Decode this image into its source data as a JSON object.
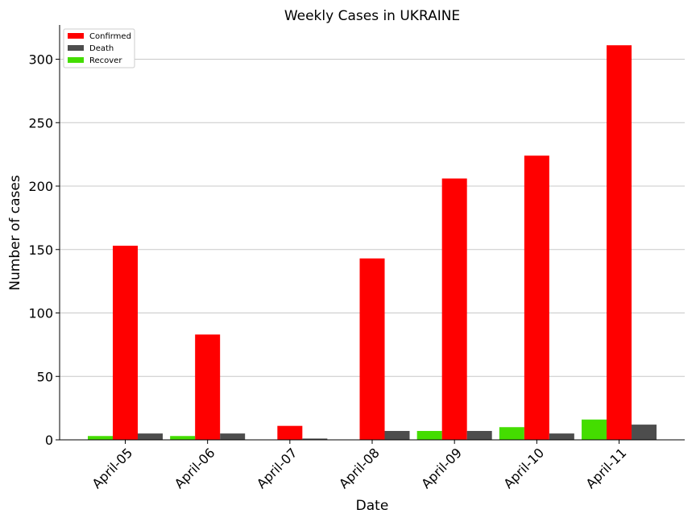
{
  "chart_data": {
    "type": "bar",
    "title": "Weekly Cases in UKRAINE",
    "xlabel": "Date",
    "ylabel": "Number of cases",
    "categories": [
      "April-05",
      "April-06",
      "April-07",
      "April-08",
      "April-09",
      "April-10",
      "April-11"
    ],
    "series": [
      {
        "name": "Recover",
        "color": "#44dd00",
        "values": [
          3,
          3,
          0,
          0,
          7,
          10,
          16
        ]
      },
      {
        "name": "Confirmed",
        "color": "#ff0000",
        "values": [
          153,
          83,
          11,
          143,
          206,
          224,
          311
        ]
      },
      {
        "name": "Death",
        "color": "#4d4d4d",
        "values": [
          5,
          5,
          1,
          7,
          7,
          5,
          12
        ]
      }
    ],
    "legend_order": [
      "Confirmed",
      "Death",
      "Recover"
    ],
    "legend_position": "top-left",
    "ylim": [
      0,
      327
    ],
    "yticks": [
      0,
      50,
      100,
      150,
      200,
      250,
      300
    ],
    "grid": "horizontal"
  }
}
